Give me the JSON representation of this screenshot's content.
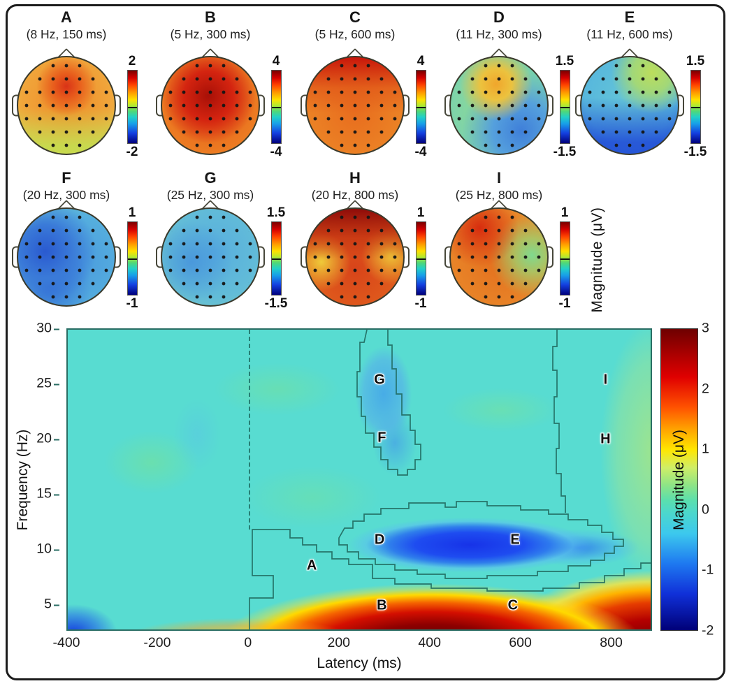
{
  "topo_section": {
    "magnitude_label": "Magnitude (μV)"
  },
  "chart_data": [
    {
      "type": "topomap",
      "panel": "A",
      "condition": "(8 Hz, 150 ms)",
      "frequency_hz": 8,
      "latency_ms": 150,
      "colorbar_max": "2",
      "colorbar_min": "-2",
      "pattern": "positive fronto-central red focus over orange scalp, green-yellow posterior"
    },
    {
      "type": "topomap",
      "panel": "B",
      "condition": "(5 Hz, 300 ms)",
      "frequency_hz": 5,
      "latency_ms": 300,
      "colorbar_max": "4",
      "colorbar_min": "-4",
      "pattern": "strong dark-red fronto-central positivity covering most of the scalp"
    },
    {
      "type": "topomap",
      "panel": "C",
      "condition": "(5 Hz, 600 ms)",
      "frequency_hz": 5,
      "latency_ms": 600,
      "colorbar_max": "4",
      "colorbar_min": "-4",
      "pattern": "broad red-orange positivity, strongest frontally"
    },
    {
      "type": "topomap",
      "panel": "D",
      "condition": "(11 Hz, 300 ms)",
      "frequency_hz": 11,
      "latency_ms": 300,
      "colorbar_max": "1.5",
      "colorbar_min": "-1.5",
      "pattern": "yellow-orange fronto-central positivity with blue right-posterior negativity"
    },
    {
      "type": "topomap",
      "panel": "E",
      "condition": "(11 Hz, 600 ms)",
      "frequency_hz": 11,
      "latency_ms": 600,
      "colorbar_max": "1.5",
      "colorbar_min": "-1.5",
      "pattern": "blue posterior negativity, cyan center, mild green-yellow right-frontal positivity"
    },
    {
      "type": "topomap",
      "panel": "F",
      "condition": "(20 Hz, 300 ms)",
      "frequency_hz": 20,
      "latency_ms": 300,
      "colorbar_max": "1",
      "colorbar_min": "-1",
      "pattern": "blue negativity over most of the scalp, deepest left-central"
    },
    {
      "type": "topomap",
      "panel": "G",
      "condition": "(25 Hz, 300 ms)",
      "frequency_hz": 25,
      "latency_ms": 300,
      "colorbar_max": "1.5",
      "colorbar_min": "-1.5",
      "pattern": "mild cyan-blue negativity over the whole scalp"
    },
    {
      "type": "topomap",
      "panel": "H",
      "condition": "(20 Hz, 800 ms)",
      "frequency_hz": 20,
      "latency_ms": 800,
      "colorbar_max": "1",
      "colorbar_min": "-1",
      "pattern": "red-orange positivity with dark-red frontal maximum, yellow lateral patches"
    },
    {
      "type": "topomap",
      "panel": "I",
      "condition": "(25 Hz, 800 ms)",
      "frequency_hz": 25,
      "latency_ms": 800,
      "colorbar_max": "1",
      "colorbar_min": "-1",
      "pattern": "orange positivity, red left-frontal, small green right-central patch"
    },
    {
      "type": "heatmap",
      "xlabel": "Latency (ms)",
      "ylabel": "Frequency (Hz)",
      "xlim": [
        -400,
        890
      ],
      "ylim": [
        2.6,
        30
      ],
      "x_ticks": [
        -400,
        -200,
        0,
        200,
        400,
        600,
        800
      ],
      "y_ticks": [
        5,
        10,
        15,
        20,
        25,
        30
      ],
      "grid": false,
      "stimulus_onset_ms": 0,
      "colorbar": {
        "label": "Magnitude (μV)",
        "min": -2,
        "max": 3,
        "ticks": [
          3,
          2,
          1,
          0,
          -1,
          -2
        ]
      },
      "annotations": [
        {
          "label": "A",
          "latency_ms": 140,
          "freq_hz": 8.4
        },
        {
          "label": "B",
          "latency_ms": 295,
          "freq_hz": 4.8
        },
        {
          "label": "C",
          "latency_ms": 585,
          "freq_hz": 4.8
        },
        {
          "label": "D",
          "latency_ms": 290,
          "freq_hz": 10.8
        },
        {
          "label": "E",
          "latency_ms": 590,
          "freq_hz": 10.8
        },
        {
          "label": "F",
          "latency_ms": 295,
          "freq_hz": 20.1
        },
        {
          "label": "G",
          "latency_ms": 290,
          "freq_hz": 25.4
        },
        {
          "label": "H",
          "latency_ms": 790,
          "freq_hz": 20.0
        },
        {
          "label": "I",
          "latency_ms": 790,
          "freq_hz": 25.4
        }
      ],
      "regions": [
        {
          "name": "theta-delta synchronization band",
          "latency_ms": [
            -100,
            890
          ],
          "freq_hz": [
            2.6,
            6.5
          ],
          "peak_magnitude_uv": 3
        },
        {
          "name": "alpha desynchronization blob",
          "latency_ms": [
            230,
            820
          ],
          "freq_hz": [
            8,
            14
          ],
          "peak_magnitude_uv": -2
        },
        {
          "name": "beta desynchronization blob",
          "latency_ms": [
            230,
            400
          ],
          "freq_hz": [
            17,
            30
          ],
          "peak_magnitude_uv": -0.8
        },
        {
          "name": "pre-stimulus low-frequency negativity",
          "latency_ms": [
            -400,
            -330
          ],
          "freq_hz": [
            2.6,
            4.5
          ],
          "peak_magnitude_uv": -1.8
        },
        {
          "name": "late broadband synchronization",
          "latency_ms": [
            760,
            890
          ],
          "freq_hz": [
            8,
            28
          ],
          "peak_magnitude_uv": 1
        },
        {
          "name": "baseline",
          "magnitude_uv": 0
        }
      ]
    }
  ]
}
